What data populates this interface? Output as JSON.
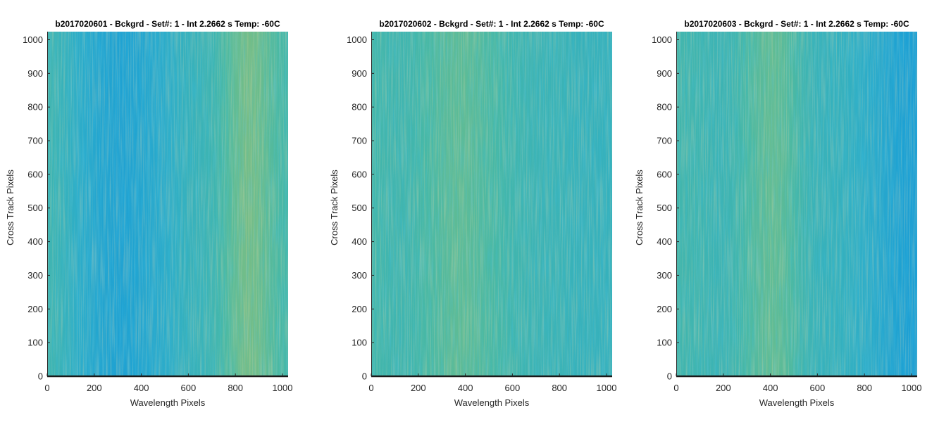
{
  "chart_data": [
    {
      "type": "heatmap",
      "title": "b2017020601 - Bckgrd - Set#: 1 - Int 2.2662 s Temp: -60C",
      "xlabel": "Wavelength Pixels",
      "ylabel": "Cross Track Pixels",
      "xlim": [
        0,
        1024
      ],
      "ylim": [
        0,
        1024
      ],
      "xticks": [
        0,
        200,
        400,
        600,
        800,
        1000
      ],
      "yticks": [
        0,
        100,
        200,
        300,
        400,
        500,
        600,
        700,
        800,
        900,
        1000
      ],
      "column_profile": [
        0.45,
        0.42,
        0.38,
        0.33,
        0.28,
        0.24,
        0.22,
        0.2,
        0.21,
        0.24,
        0.27,
        0.31,
        0.35,
        0.38,
        0.4,
        0.42,
        0.45,
        0.52,
        0.62,
        0.7,
        0.68,
        0.6,
        0.52,
        0.48
      ]
    },
    {
      "type": "heatmap",
      "title": "b2017020602 - Bckgrd - Set#: 1 - Int 2.2662 s Temp: -60C",
      "xlabel": "Wavelength Pixels",
      "ylabel": "Cross Track Pixels",
      "xlim": [
        0,
        1024
      ],
      "ylim": [
        0,
        1024
      ],
      "xticks": [
        0,
        200,
        400,
        600,
        800,
        1000
      ],
      "yticks": [
        0,
        100,
        200,
        300,
        400,
        500,
        600,
        700,
        800,
        900,
        1000
      ],
      "column_profile": [
        0.48,
        0.47,
        0.46,
        0.46,
        0.47,
        0.5,
        0.53,
        0.57,
        0.6,
        0.6,
        0.57,
        0.53,
        0.5,
        0.47,
        0.45,
        0.44,
        0.43,
        0.42,
        0.42,
        0.41,
        0.4,
        0.4,
        0.39,
        0.39
      ]
    },
    {
      "type": "heatmap",
      "title": "b2017020603 - Bckgrd - Set#: 1 - Int 2.2662 s Temp: -60C",
      "xlabel": "Wavelength Pixels",
      "ylabel": "Cross Track Pixels",
      "xlim": [
        0,
        1024
      ],
      "ylim": [
        0,
        1024
      ],
      "xticks": [
        0,
        200,
        400,
        600,
        800,
        1000
      ],
      "yticks": [
        0,
        100,
        200,
        300,
        400,
        500,
        600,
        700,
        800,
        900,
        1000
      ],
      "column_profile": [
        0.47,
        0.46,
        0.45,
        0.44,
        0.43,
        0.44,
        0.47,
        0.52,
        0.58,
        0.62,
        0.6,
        0.53,
        0.46,
        0.42,
        0.4,
        0.39,
        0.38,
        0.36,
        0.34,
        0.3,
        0.25,
        0.21,
        0.18,
        0.16
      ]
    }
  ],
  "colors": {
    "colormap": [
      "#3aa9d6",
      "#1c9fd4",
      "#2dadc8",
      "#47b8a6",
      "#6bbd8c",
      "#9cbf73",
      "#bcbd62"
    ],
    "axis": "#262626",
    "baseline": "#1a1a1a"
  }
}
